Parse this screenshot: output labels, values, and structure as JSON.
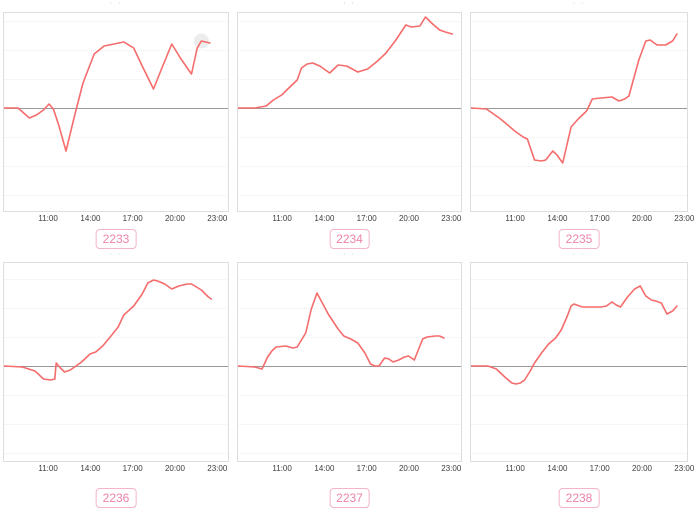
{
  "colors": {
    "line": "#f56c6c",
    "baseline": "#9a9a9a",
    "grid_dotted": "#efefef",
    "panel_border": "#dedede",
    "tick_text": "#3d3d3d",
    "tag_text": "#ee84ad",
    "tag_border": "#f3b4cc",
    "hover_marker_fill": "#ececec"
  },
  "clipped_title_marks": "· ·",
  "chart_data": [
    {
      "type": "line",
      "id": "2233",
      "tag_label": "2233",
      "x_tick_labels": [
        "11:00",
        "14:00",
        "17:00",
        "20:00",
        "23:00"
      ],
      "x_range_hours": [
        7.8,
        23.9
      ],
      "baseline_value": 0,
      "y_unit": "relative (no y-axis labels shown); values are offsets above baseline",
      "grid": "horizontal dotted",
      "points": [
        [
          7.8,
          0
        ],
        [
          8.8,
          0
        ],
        [
          9.2,
          -5
        ],
        [
          9.6,
          -10
        ],
        [
          10.1,
          -7
        ],
        [
          10.6,
          -2
        ],
        [
          11.0,
          4
        ],
        [
          11.3,
          -1
        ],
        [
          11.7,
          -18
        ],
        [
          12.2,
          -43
        ],
        [
          12.8,
          -8
        ],
        [
          13.4,
          25
        ],
        [
          14.2,
          54
        ],
        [
          14.9,
          62
        ],
        [
          15.6,
          64
        ],
        [
          16.3,
          66
        ],
        [
          17.0,
          60
        ],
        [
          17.6,
          42
        ],
        [
          18.4,
          19
        ],
        [
          19.0,
          40
        ],
        [
          19.7,
          64
        ],
        [
          20.3,
          50
        ],
        [
          21.1,
          34
        ],
        [
          21.5,
          60
        ],
        [
          21.8,
          67
        ],
        [
          22.1,
          66
        ],
        [
          22.4,
          65
        ]
      ],
      "hover_marker": {
        "hour": 21.8,
        "value": 67
      }
    },
    {
      "type": "line",
      "id": "2234",
      "tag_label": "2234",
      "x_tick_labels": [
        "11:00",
        "14:00",
        "17:00",
        "20:00",
        "23:00"
      ],
      "x_range_hours": [
        7.8,
        23.9
      ],
      "baseline_value": 0,
      "y_unit": "relative (no y-axis labels shown); values are offsets above baseline",
      "grid": "horizontal dotted",
      "points": [
        [
          7.8,
          0
        ],
        [
          9.0,
          0
        ],
        [
          9.8,
          2
        ],
        [
          10.3,
          8
        ],
        [
          10.9,
          13
        ],
        [
          11.4,
          20
        ],
        [
          12.0,
          28
        ],
        [
          12.3,
          40
        ],
        [
          12.7,
          44
        ],
        [
          13.1,
          45
        ],
        [
          13.6,
          42
        ],
        [
          14.3,
          35
        ],
        [
          14.9,
          43
        ],
        [
          15.5,
          42
        ],
        [
          16.3,
          36
        ],
        [
          17.0,
          39
        ],
        [
          17.7,
          47
        ],
        [
          18.3,
          55
        ],
        [
          19.0,
          68
        ],
        [
          19.7,
          83
        ],
        [
          20.1,
          81
        ],
        [
          20.7,
          82
        ],
        [
          21.1,
          91
        ],
        [
          21.6,
          84
        ],
        [
          22.1,
          78
        ],
        [
          22.5,
          76
        ],
        [
          23.0,
          74
        ]
      ]
    },
    {
      "type": "line",
      "id": "2235",
      "tag_label": "2235",
      "x_tick_labels": [
        "11:00",
        "14:00",
        "17:00",
        "20:00",
        "23:00"
      ],
      "x_range_hours": [
        7.8,
        23.9
      ],
      "baseline_value": 0,
      "y_unit": "relative (no y-axis labels shown); values are offsets above baseline",
      "grid": "horizontal dotted",
      "points": [
        [
          7.8,
          0
        ],
        [
          8.9,
          -1
        ],
        [
          9.9,
          -11
        ],
        [
          10.4,
          -17
        ],
        [
          10.9,
          -23
        ],
        [
          11.5,
          -29
        ],
        [
          11.8,
          -31
        ],
        [
          12.3,
          -52
        ],
        [
          12.8,
          -53
        ],
        [
          13.1,
          -52
        ],
        [
          13.6,
          -43
        ],
        [
          13.9,
          -47
        ],
        [
          14.3,
          -55
        ],
        [
          14.9,
          -19
        ],
        [
          15.4,
          -11
        ],
        [
          16.0,
          -3
        ],
        [
          16.4,
          9
        ],
        [
          17.0,
          10
        ],
        [
          17.8,
          11
        ],
        [
          18.3,
          7
        ],
        [
          18.7,
          9
        ],
        [
          19.0,
          12
        ],
        [
          19.7,
          48
        ],
        [
          20.2,
          67
        ],
        [
          20.5,
          68
        ],
        [
          21.0,
          63
        ],
        [
          21.6,
          63
        ],
        [
          22.1,
          67
        ],
        [
          22.4,
          74
        ]
      ]
    },
    {
      "type": "line",
      "id": "2236",
      "tag_label": "2236",
      "x_tick_labels": [
        "11:00",
        "14:00",
        "17:00",
        "20:00",
        "23:00"
      ],
      "x_range_hours": [
        7.8,
        23.9
      ],
      "baseline_value": 0,
      "y_unit": "relative (no y-axis labels shown); values are offsets above baseline",
      "grid": "horizontal dotted",
      "points": [
        [
          7.8,
          0
        ],
        [
          9.1,
          -1
        ],
        [
          10.0,
          -5
        ],
        [
          10.6,
          -13
        ],
        [
          11.1,
          -14
        ],
        [
          11.4,
          -13
        ],
        [
          11.5,
          3
        ],
        [
          11.8,
          -2
        ],
        [
          12.1,
          -6
        ],
        [
          12.5,
          -4
        ],
        [
          12.9,
          0
        ],
        [
          13.3,
          4
        ],
        [
          13.9,
          12
        ],
        [
          14.3,
          14
        ],
        [
          14.8,
          20
        ],
        [
          15.5,
          32
        ],
        [
          15.9,
          39
        ],
        [
          16.3,
          51
        ],
        [
          17.0,
          60
        ],
        [
          17.6,
          72
        ],
        [
          18.0,
          83
        ],
        [
          18.4,
          86
        ],
        [
          18.7,
          85
        ],
        [
          19.2,
          82
        ],
        [
          19.7,
          77
        ],
        [
          20.2,
          80
        ],
        [
          20.8,
          82
        ],
        [
          21.1,
          82
        ],
        [
          21.8,
          76
        ],
        [
          22.3,
          69
        ],
        [
          22.5,
          67
        ]
      ]
    },
    {
      "type": "line",
      "id": "2237",
      "tag_label": "2237",
      "x_tick_labels": [
        "11:00",
        "14:00",
        "17:00",
        "20:00",
        "23:00"
      ],
      "x_range_hours": [
        7.8,
        23.9
      ],
      "baseline_value": 0,
      "y_unit": "relative (no y-axis labels shown); values are offsets above baseline",
      "grid": "horizontal dotted",
      "points": [
        [
          7.8,
          0
        ],
        [
          9.0,
          -1
        ],
        [
          9.5,
          -3
        ],
        [
          9.9,
          9
        ],
        [
          10.2,
          15
        ],
        [
          10.5,
          19
        ],
        [
          11.2,
          20
        ],
        [
          11.7,
          18
        ],
        [
          12.0,
          19
        ],
        [
          12.6,
          33
        ],
        [
          13.0,
          57
        ],
        [
          13.4,
          73
        ],
        [
          14.2,
          52
        ],
        [
          14.9,
          37
        ],
        [
          15.3,
          30
        ],
        [
          15.8,
          27
        ],
        [
          16.3,
          23
        ],
        [
          16.8,
          13
        ],
        [
          17.2,
          2
        ],
        [
          17.5,
          0
        ],
        [
          17.8,
          0
        ],
        [
          18.2,
          8
        ],
        [
          18.5,
          7
        ],
        [
          18.8,
          4
        ],
        [
          19.2,
          6
        ],
        [
          19.6,
          9
        ],
        [
          19.9,
          10
        ],
        [
          20.3,
          6
        ],
        [
          20.7,
          20
        ],
        [
          20.9,
          27
        ],
        [
          21.2,
          29
        ],
        [
          21.8,
          30
        ],
        [
          22.1,
          30
        ],
        [
          22.4,
          28
        ]
      ]
    },
    {
      "type": "line",
      "id": "2238",
      "tag_label": "2238",
      "x_tick_labels": [
        "11:00",
        "14:00",
        "17:00",
        "20:00",
        "23:00"
      ],
      "x_range_hours": [
        7.8,
        23.9
      ],
      "baseline_value": 0,
      "y_unit": "relative (no y-axis labels shown); values are offsets above baseline",
      "grid": "horizontal dotted",
      "points": [
        [
          7.8,
          0
        ],
        [
          9.0,
          0
        ],
        [
          9.6,
          -3
        ],
        [
          10.2,
          -11
        ],
        [
          10.7,
          -17
        ],
        [
          11.0,
          -18
        ],
        [
          11.3,
          -17
        ],
        [
          11.6,
          -14
        ],
        [
          12.0,
          -5
        ],
        [
          12.3,
          3
        ],
        [
          12.8,
          13
        ],
        [
          13.3,
          22
        ],
        [
          13.8,
          28
        ],
        [
          14.2,
          36
        ],
        [
          14.6,
          49
        ],
        [
          14.9,
          60
        ],
        [
          15.1,
          62
        ],
        [
          15.7,
          59
        ],
        [
          16.3,
          59
        ],
        [
          17.0,
          59
        ],
        [
          17.4,
          60
        ],
        [
          17.8,
          64
        ],
        [
          18.1,
          61
        ],
        [
          18.4,
          59
        ],
        [
          18.9,
          69
        ],
        [
          19.4,
          77
        ],
        [
          19.8,
          80
        ],
        [
          20.2,
          70
        ],
        [
          20.6,
          66
        ],
        [
          20.9,
          65
        ],
        [
          21.3,
          63
        ],
        [
          21.7,
          52
        ],
        [
          22.1,
          55
        ],
        [
          22.4,
          60
        ]
      ]
    }
  ]
}
